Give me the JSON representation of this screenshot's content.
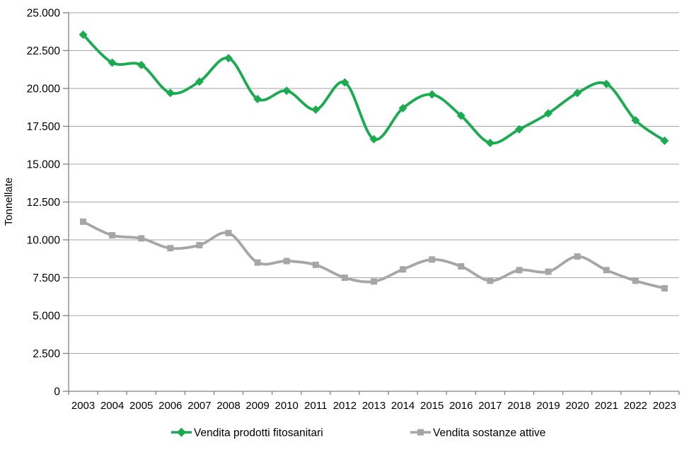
{
  "chart_data": {
    "type": "line",
    "title": "",
    "xlabel": "",
    "ylabel": "Tonnellate",
    "x": [
      "2003",
      "2004",
      "2005",
      "2006",
      "2007",
      "2008",
      "2009",
      "2010",
      "2011",
      "2012",
      "2013",
      "2014",
      "2015",
      "2016",
      "2017",
      "2018",
      "2019",
      "2020",
      "2021",
      "2022",
      "2023"
    ],
    "series": [
      {
        "name": "Vendita prodotti fitosanitari",
        "color": "#1aaa50",
        "marker": "diamond",
        "smooth": true,
        "values": [
          23550,
          21700,
          21550,
          19700,
          20450,
          22000,
          19300,
          19850,
          18600,
          20400,
          16650,
          18700,
          19600,
          18200,
          16400,
          17300,
          18350,
          19700,
          20300,
          17900,
          16550
        ]
      },
      {
        "name": "Vendita sostanze attive",
        "color": "#a6a6a6",
        "marker": "square",
        "smooth": true,
        "values": [
          11200,
          10300,
          10100,
          9450,
          9650,
          10450,
          8500,
          8600,
          8350,
          7500,
          7250,
          8050,
          8700,
          8250,
          7300,
          8000,
          7900,
          8900,
          8000,
          7300,
          6800
        ]
      }
    ],
    "ylim": [
      0,
      25000
    ],
    "y_tick_step": 2500,
    "y_tick_labels": [
      "0",
      "2.500",
      "5.000",
      "7.500",
      "10.000",
      "12.500",
      "15.000",
      "17.500",
      "20.000",
      "22.500",
      "25.000"
    ],
    "grid": "horizontal",
    "legend_position": "bottom"
  },
  "colors": {
    "gridline": "#a6a6a6",
    "axis": "#808080",
    "text": "#000000",
    "background": "#ffffff"
  }
}
